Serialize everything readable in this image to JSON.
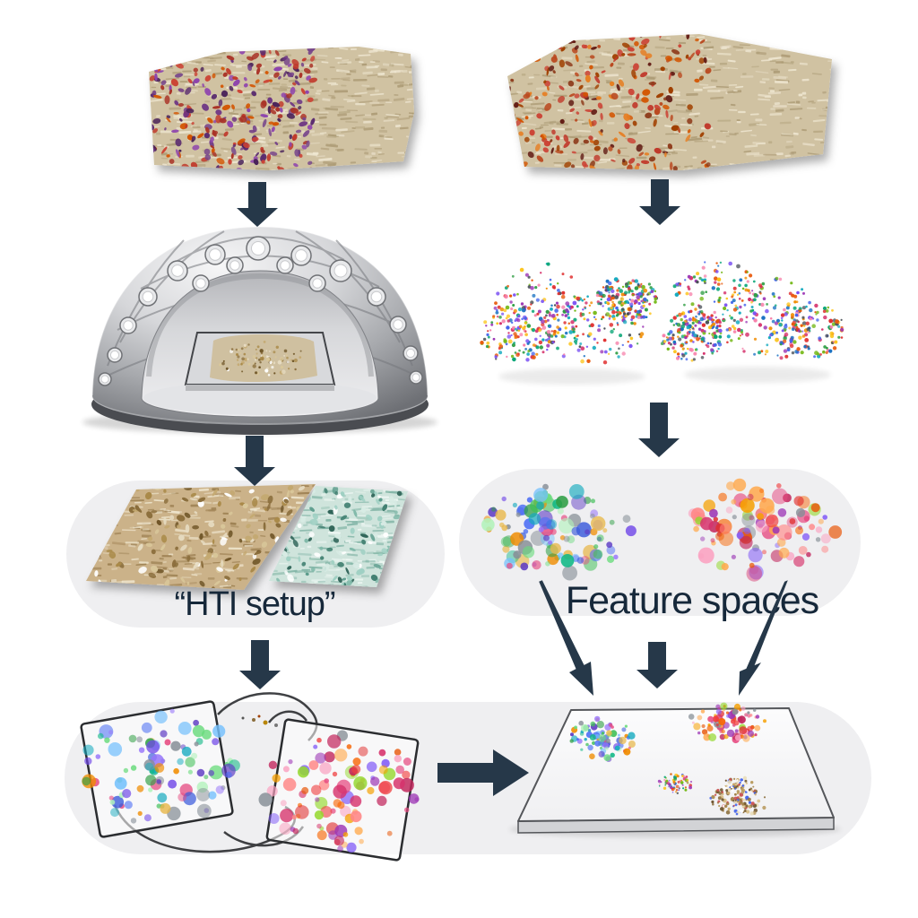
{
  "labels": {
    "hti_setup": "“HTI setup”",
    "feature_spaces": "Feature spaces"
  },
  "colors": {
    "background": "#ffffff",
    "arrow": "#263849",
    "panel_bg": "#efeff1",
    "label_text": "#16283a",
    "frame_outline": "#2b2d30",
    "textile_base": "#d0c2a2",
    "textile_weave_dark": "#ab9a74",
    "textile_weave_light": "#efe7d2",
    "gold_base": "#cbb289",
    "teal_base": "#cfe4dc"
  },
  "palettes": {
    "textile_left_motif": [
      "#a93226",
      "#c0392b",
      "#cb4335",
      "#d35400",
      "#6c3483",
      "#5b2c6f",
      "#76448a",
      "#4a235a",
      "#8e44ad"
    ],
    "textile_right_motif": [
      "#ba4a21",
      "#d35400",
      "#c0392b",
      "#a04000",
      "#e67e22",
      "#8e3b1b",
      "#641e16",
      "#cb4335"
    ],
    "confetti": [
      "#e03131",
      "#1971c2",
      "#2f9e44",
      "#f08c00",
      "#9c36b5",
      "#0ca678",
      "#e8590c",
      "#d6336c",
      "#4263eb",
      "#74b816",
      "#fcc419",
      "#495057",
      "#15aabf",
      "#f783ac",
      "#7950f2"
    ],
    "cool_cluster": [
      "#3b5bdb",
      "#4c6ef5",
      "#5f3dc4",
      "#7048e8",
      "#9775fa",
      "#2f9e44",
      "#40c057",
      "#69db7c",
      "#12b886",
      "#15aabf",
      "#74c0fc",
      "#b2f2bb",
      "#e8b84b",
      "#f08c00",
      "#e64980",
      "#868e96"
    ],
    "warm_cluster": [
      "#e03131",
      "#f03e3e",
      "#e8590c",
      "#f76707",
      "#f59f00",
      "#e64980",
      "#d6336c",
      "#c2255c",
      "#9c36b5",
      "#845ef7",
      "#ff8787",
      "#ffa94d",
      "#faa2c1",
      "#94d82d",
      "#868e96"
    ],
    "gold_texture": [
      "#a98948",
      "#c3a870",
      "#8a6d3b",
      "#e7dcc2",
      "#ffffff",
      "#6f5527",
      "#d9c79a"
    ],
    "teal_texture": [
      "#5d9c8c",
      "#7fb8a8",
      "#3e7d6e",
      "#d7ebe4",
      "#ffffff",
      "#9fd0c3",
      "#2e6357"
    ],
    "gold_pile": [
      "#b89a5e",
      "#a3824a",
      "#d9c08a",
      "#8a6d3b",
      "#e9dcb8",
      "#c9a96a",
      "#6e5630",
      "#ffffff",
      "#c94f4f",
      "#4263eb"
    ]
  }
}
